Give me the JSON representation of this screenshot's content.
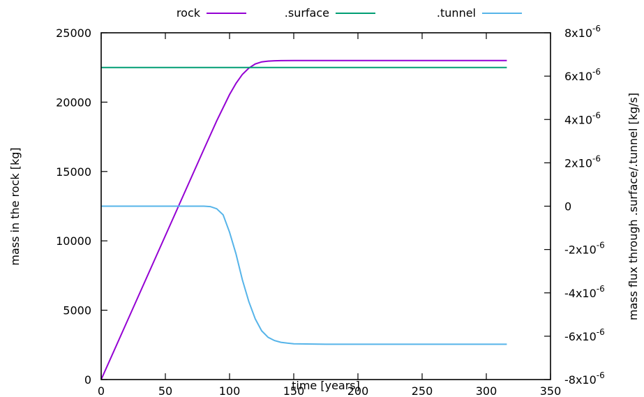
{
  "chart_data": {
    "type": "line",
    "xlabel": "time [years]",
    "ylabel": "mass in the rock [kg]",
    "y2label": "mass flux through .surface/.tunnel [kg/s]",
    "xlim": [
      0,
      350
    ],
    "ylim": [
      0,
      25000
    ],
    "y2lim": [
      -8e-06,
      8e-06
    ],
    "x_ticks": [
      "0",
      "50",
      "100",
      "150",
      "200",
      "250",
      "300",
      "350"
    ],
    "y_ticks": [
      "0",
      "5000",
      "10000",
      "15000",
      "20000",
      "25000"
    ],
    "y2_ticks": [
      {
        "base": "-8x10",
        "exp": "-6"
      },
      {
        "base": "-6x10",
        "exp": "-6"
      },
      {
        "base": "-4x10",
        "exp": "-6"
      },
      {
        "base": "-2x10",
        "exp": "-6"
      },
      {
        "base": "0",
        "exp": ""
      },
      {
        "base": "2x10",
        "exp": "-6"
      },
      {
        "base": "4x10",
        "exp": "-6"
      },
      {
        "base": "6x10",
        "exp": "-6"
      },
      {
        "base": "8x10",
        "exp": "-6"
      }
    ],
    "grid": false,
    "legend_position": "top",
    "series": [
      {
        "name": "rock",
        "axis": "y",
        "color": "#9400d3",
        "x": [
          0,
          20,
          40,
          60,
          80,
          90,
          100,
          105,
          110,
          115,
          120,
          125,
          130,
          135,
          140,
          150,
          175,
          200,
          250,
          316
        ],
        "y": [
          0,
          4150,
          8300,
          12450,
          16600,
          18650,
          20550,
          21350,
          22000,
          22450,
          22750,
          22900,
          22960,
          22985,
          22995,
          23000,
          23000,
          23000,
          23000,
          23000
        ]
      },
      {
        "name": ".surface",
        "axis": "y2",
        "color": "#009e73",
        "x": [
          0,
          316
        ],
        "y": [
          6.4e-06,
          6.4e-06
        ]
      },
      {
        "name": ".tunnel",
        "axis": "y2",
        "color": "#56b4e9",
        "x": [
          0,
          60,
          80,
          85,
          90,
          95,
          100,
          105,
          110,
          115,
          120,
          125,
          130,
          135,
          140,
          145,
          150,
          175,
          200,
          250,
          316
        ],
        "y": [
          0,
          0,
          0,
          -2e-08,
          -1.2e-07,
          -4e-07,
          -1.2e-06,
          -2.2e-06,
          -3.4e-06,
          -4.4e-06,
          -5.2e-06,
          -5.75e-06,
          -6.05e-06,
          -6.2e-06,
          -6.28e-06,
          -6.32e-06,
          -6.35e-06,
          -6.37e-06,
          -6.37e-06,
          -6.37e-06,
          -6.37e-06
        ]
      }
    ]
  }
}
